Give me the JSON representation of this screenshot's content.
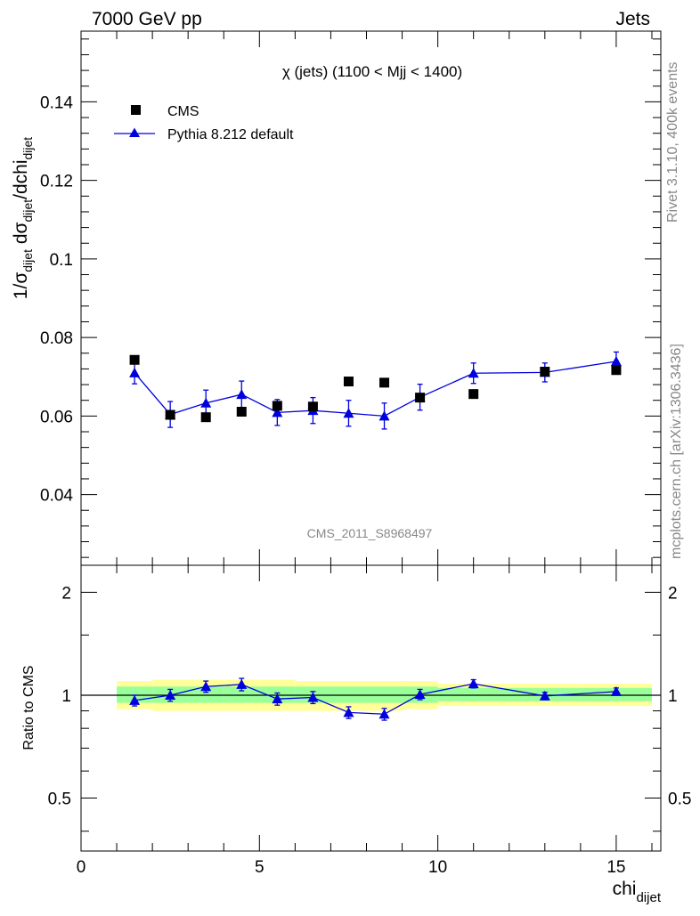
{
  "header": {
    "energy_label": "7000 GeV pp",
    "category_label": "Jets"
  },
  "side": {
    "rivet_label": "Rivet 3.1.10,  400k events",
    "mcplots_label": "mcplots.cern.ch [arXiv:1306.3436]"
  },
  "colors": {
    "data": "#000000",
    "mc": "#0000dd",
    "band_inner": "#99ff99",
    "band_outer": "#ffff99"
  },
  "chart_data": [
    {
      "type": "scatter",
      "title": "χ (jets) (1100 < Mjj < 1400)",
      "ylabel": "1/σdijet dσdijet/dchidijet",
      "watermark": "CMS_2011_S8968497",
      "xlim": [
        0,
        16.25
      ],
      "ylim": [
        0.022,
        0.158
      ],
      "yticks": [
        0.04,
        0.06,
        0.08,
        0.1,
        0.12,
        0.14
      ],
      "ytick_labels": [
        "0.04",
        "0.06",
        "0.08",
        "0.1",
        "0.12",
        "0.14"
      ],
      "legend": {
        "placement": "top-left"
      },
      "series": [
        {
          "name": "CMS",
          "marker": "square",
          "x": [
            1.5,
            2.5,
            3.5,
            4.5,
            5.5,
            6.5,
            7.5,
            8.5,
            9.5,
            11.0,
            13.0,
            15.0
          ],
          "y": [
            0.0743,
            0.0603,
            0.0597,
            0.0611,
            0.0626,
            0.0624,
            0.0688,
            0.0685,
            0.0647,
            0.0656,
            0.0713,
            0.0717
          ]
        },
        {
          "name": "Pythia 8.212 default",
          "marker": "triangle",
          "x": [
            1.5,
            2.5,
            3.5,
            4.5,
            5.5,
            6.5,
            7.5,
            8.5,
            9.5,
            11.0,
            13.0,
            15.0
          ],
          "y": [
            0.071,
            0.0604,
            0.0633,
            0.0655,
            0.0609,
            0.0614,
            0.0607,
            0.06,
            0.0648,
            0.0709,
            0.0711,
            0.0739
          ],
          "yerr": [
            0.0028,
            0.0033,
            0.0033,
            0.0034,
            0.0033,
            0.0033,
            0.0033,
            0.0033,
            0.0033,
            0.0026,
            0.0024,
            0.0024
          ]
        }
      ]
    },
    {
      "type": "scatter",
      "ylabel": "Ratio to CMS",
      "xlabel": "chidijet",
      "xlim": [
        0,
        16.25
      ],
      "ylim": [
        0.35,
        2.4
      ],
      "yscale": "log",
      "xticks": [
        0,
        5,
        10,
        15
      ],
      "xtick_labels": [
        "0",
        "5",
        "10",
        "15"
      ],
      "yticks": [
        0.5,
        1,
        2
      ],
      "ytick_labels": [
        "0.5",
        "1",
        "2"
      ],
      "reference_line": 1,
      "bands": {
        "x_edges": [
          1,
          2,
          3,
          4,
          5,
          6,
          7,
          8,
          9,
          10,
          12,
          14,
          16
        ],
        "inner_low": [
          0.95,
          0.95,
          0.95,
          0.95,
          0.95,
          0.95,
          0.95,
          0.95,
          0.95,
          0.96,
          0.96,
          0.96
        ],
        "inner_high": [
          1.06,
          1.06,
          1.06,
          1.06,
          1.06,
          1.06,
          1.06,
          1.06,
          1.06,
          1.05,
          1.05,
          1.05
        ],
        "outer_low": [
          0.91,
          0.9,
          0.9,
          0.9,
          0.9,
          0.9,
          0.9,
          0.9,
          0.91,
          0.93,
          0.93,
          0.93
        ],
        "outer_high": [
          1.1,
          1.11,
          1.11,
          1.11,
          1.11,
          1.1,
          1.1,
          1.1,
          1.1,
          1.08,
          1.08,
          1.08
        ]
      },
      "series": [
        {
          "name": "Pythia 8.212 default",
          "marker": "triangle",
          "x": [
            1.5,
            2.5,
            3.5,
            4.5,
            5.5,
            6.5,
            7.5,
            8.5,
            9.5,
            11.0,
            13.0,
            15.0
          ],
          "y": [
            0.965,
            1.0,
            1.06,
            1.075,
            0.975,
            0.985,
            0.89,
            0.88,
            1.005,
            1.08,
            0.995,
            1.025
          ],
          "yerr": [
            0.035,
            0.04,
            0.04,
            0.045,
            0.04,
            0.04,
            0.035,
            0.035,
            0.035,
            0.03,
            0.025,
            0.025
          ]
        }
      ]
    }
  ]
}
